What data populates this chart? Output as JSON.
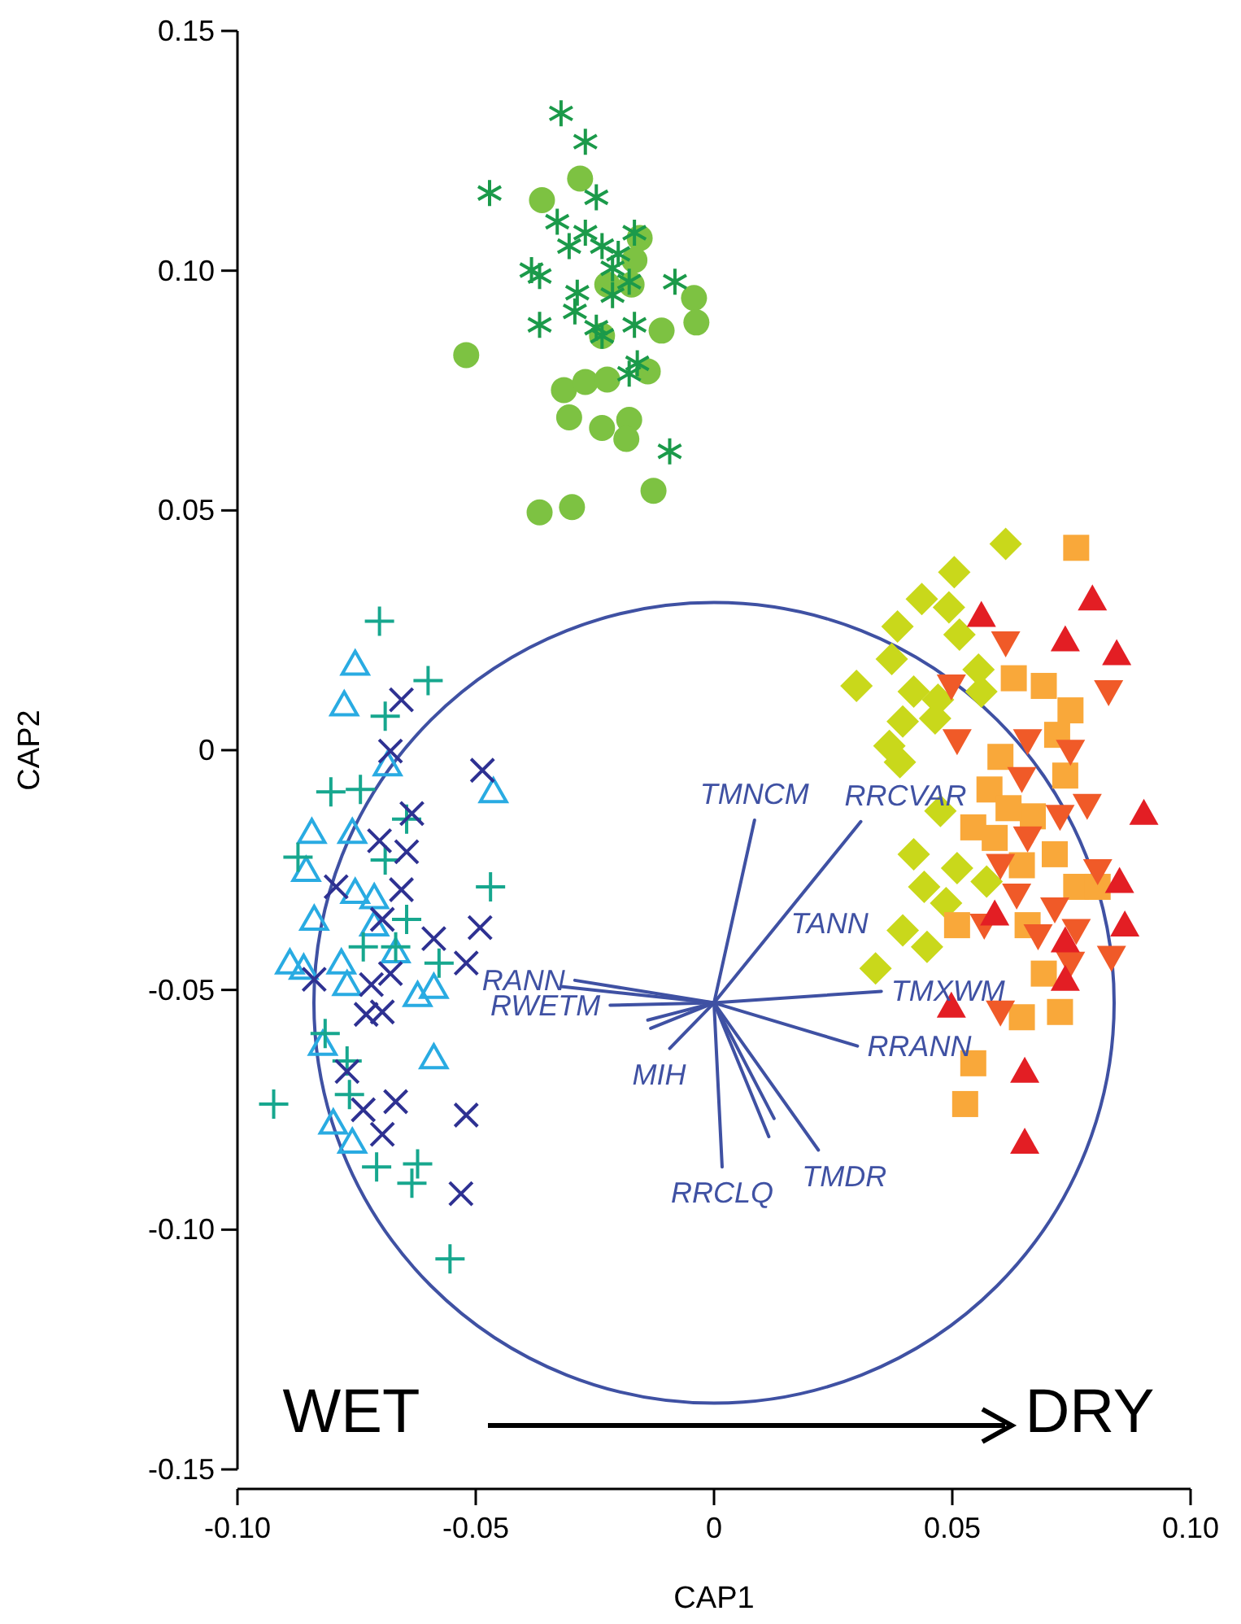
{
  "chart_data": {
    "type": "scatter",
    "xlabel": "CAP1",
    "ylabel": "CAP2",
    "xlim": [
      -0.1,
      0.1
    ],
    "ylim": [
      -0.15,
      0.15
    ],
    "xticks": [
      {
        "value": -0.1,
        "label": "-0.10"
      },
      {
        "value": -0.05,
        "label": "-0.05"
      },
      0,
      {
        "value": 0.05,
        "label": "0.05"
      },
      {
        "value": 0.1,
        "label": "0.10"
      }
    ],
    "yticks": [
      {
        "value": -0.15,
        "label": "-0.15"
      },
      {
        "value": -0.1,
        "label": "-0.10"
      },
      {
        "value": -0.05,
        "label": "-0.05"
      },
      0,
      {
        "value": 0.05,
        "label": "0.05"
      },
      {
        "value": 0.1,
        "label": "0.10"
      },
      {
        "value": 0.15,
        "label": "0.15"
      }
    ],
    "series": [
      {
        "type": "line",
        "color": "#3f51a3",
        "x": [
          0,
          0.0085
        ],
        "values": [
          -0.0527,
          -0.0146
        ]
      },
      {
        "type": "line",
        "color": "#3f51a3",
        "x": [
          0,
          0.0308
        ],
        "values": [
          -0.0527,
          -0.0149
        ]
      },
      {
        "type": "line",
        "color": "#3f51a3",
        "x": [
          0,
          0.0351
        ],
        "values": [
          -0.0527,
          -0.0503
        ]
      },
      {
        "type": "line",
        "color": "#3f51a3",
        "x": [
          0,
          0.0301
        ],
        "values": [
          -0.0527,
          -0.0617
        ]
      },
      {
        "type": "line",
        "color": "#3f51a3",
        "x": [
          0,
          0.0219
        ],
        "values": [
          -0.0527,
          -0.0834
        ]
      },
      {
        "type": "line",
        "color": "#3f51a3",
        "x": [
          0,
          0.0115
        ],
        "values": [
          -0.0527,
          -0.0806
        ]
      },
      {
        "type": "line",
        "color": "#3f51a3",
        "x": [
          0,
          0.0126
        ],
        "values": [
          -0.0527,
          -0.0768
        ]
      },
      {
        "type": "line",
        "color": "#3f51a3",
        "x": [
          0,
          0.0017
        ],
        "values": [
          -0.0527,
          -0.0869
        ]
      },
      {
        "type": "line",
        "color": "#3f51a3",
        "x": [
          0,
          -0.0093
        ],
        "values": [
          -0.0527,
          -0.0622
        ]
      },
      {
        "type": "line",
        "color": "#3f51a3",
        "x": [
          0,
          -0.0133
        ],
        "values": [
          -0.0527,
          -0.058
        ]
      },
      {
        "type": "line",
        "color": "#3f51a3",
        "x": [
          0,
          -0.0139
        ],
        "values": [
          -0.0527,
          -0.0563
        ]
      },
      {
        "type": "line",
        "color": "#3f51a3",
        "x": [
          0,
          -0.0218
        ],
        "values": [
          -0.0527,
          -0.0532
        ]
      },
      {
        "type": "line",
        "color": "#3f51a3",
        "x": [
          0,
          -0.0292
        ],
        "values": [
          -0.0527,
          -0.048
        ]
      },
      {
        "type": "line",
        "color": "#3f51a3",
        "x": [
          0,
          -0.0321
        ],
        "values": [
          -0.0527,
          -0.0493
        ]
      },
      {
        "marker": "circle",
        "color": "#7dc242",
        "x": [
          -0.0281,
          -0.0361,
          -0.0156,
          -0.0167,
          -0.0173,
          -0.0042,
          -0.0037,
          -0.011,
          -0.0235,
          -0.052,
          -0.0139,
          -0.0315,
          -0.027,
          -0.0224,
          -0.0304,
          -0.0235,
          -0.0178,
          -0.0184,
          -0.0127,
          -0.0366,
          -0.0298,
          -0.0224
        ],
        "values": [
          0.1192,
          0.1147,
          0.1068,
          0.1022,
          0.0971,
          0.0943,
          0.0892,
          0.0875,
          0.0864,
          0.0824,
          0.079,
          0.0751,
          0.0768,
          0.0773,
          0.0694,
          0.0672,
          0.0689,
          0.0649,
          0.0541,
          0.0496,
          0.0507,
          0.0971
        ]
      },
      {
        "marker": "cross",
        "color": "#1b9a4a",
        "x": [
          -0.0321,
          -0.027,
          -0.0471,
          -0.0247,
          -0.0329,
          -0.027,
          -0.0167,
          -0.0304,
          -0.0235,
          -0.0201,
          -0.0383,
          -0.0366,
          -0.0213,
          -0.0178,
          -0.0082,
          -0.0287,
          -0.0213,
          -0.0366,
          -0.0292,
          -0.0247,
          -0.0167,
          -0.0235,
          -0.0161,
          -0.0178,
          -0.0093
        ],
        "values": [
          0.1328,
          0.1269,
          0.1162,
          0.1153,
          0.1102,
          0.1079,
          0.1079,
          0.1051,
          0.1051,
          0.1035,
          0.1001,
          0.0989,
          0.1005,
          0.0977,
          0.0977,
          0.0954,
          0.0949,
          0.0887,
          0.0915,
          0.0881,
          0.0887,
          0.0864,
          0.0807,
          0.0785,
          0.0623
        ]
      },
      {
        "marker": "triangle-open",
        "color": "#29abe2",
        "x": [
          -0.0753,
          -0.0776,
          -0.0685,
          -0.0463,
          -0.0844,
          -0.0759,
          -0.0856,
          -0.0753,
          -0.0839,
          -0.0713,
          -0.089,
          -0.0782,
          -0.0668,
          -0.077,
          -0.0588,
          -0.0622,
          -0.0821,
          -0.0588,
          -0.0799,
          -0.0759,
          -0.0713,
          -0.0861
        ],
        "values": [
          0.0179,
          0.0094,
          -0.0031,
          -0.0087,
          -0.0172,
          -0.0172,
          -0.0251,
          -0.0297,
          -0.0353,
          -0.0365,
          -0.0444,
          -0.0444,
          -0.0421,
          -0.0489,
          -0.0495,
          -0.0512,
          -0.0614,
          -0.0642,
          -0.0778,
          -0.0818,
          -0.0308,
          -0.0455
        ]
      },
      {
        "marker": "plus",
        "color": "#17a78e",
        "x": [
          -0.0702,
          -0.06,
          -0.069,
          -0.0804,
          -0.0742,
          -0.0645,
          -0.0873,
          -0.069,
          -0.0469,
          -0.0645,
          -0.0736,
          -0.0577,
          -0.0816,
          -0.077,
          -0.0924,
          -0.0708,
          -0.0622,
          -0.0634,
          -0.0554,
          -0.0668,
          -0.0765
        ],
        "values": [
          0.0269,
          0.0145,
          0.0071,
          -0.0087,
          -0.0082,
          -0.0144,
          -0.0223,
          -0.0229,
          -0.0285,
          -0.0353,
          -0.041,
          -0.0444,
          -0.0591,
          -0.0648,
          -0.0738,
          -0.0869,
          -0.0863,
          -0.0903,
          -0.1061,
          -0.041,
          -0.0718
        ]
      },
      {
        "marker": "x",
        "color": "#2e3192",
        "x": [
          -0.0656,
          -0.0679,
          -0.0486,
          -0.0634,
          -0.0702,
          -0.0645,
          -0.0656,
          -0.0696,
          -0.0588,
          -0.0491,
          -0.052,
          -0.0839,
          -0.0719,
          -0.0679,
          -0.073,
          -0.0696,
          -0.077,
          -0.0668,
          -0.0736,
          -0.052,
          -0.0696,
          -0.0531,
          -0.0793
        ],
        "values": [
          0.0105,
          -0.0002,
          -0.0042,
          -0.0132,
          -0.0189,
          -0.0212,
          -0.0291,
          -0.0353,
          -0.0393,
          -0.037,
          -0.0444,
          -0.0478,
          -0.0489,
          -0.0466,
          -0.0551,
          -0.0546,
          -0.067,
          -0.0733,
          -0.075,
          -0.0761,
          -0.0801,
          -0.0925,
          -0.0285
        ]
      },
      {
        "marker": "diamond",
        "color": "#c9d81b",
        "x": [
          0.0612,
          0.0504,
          0.0436,
          0.0493,
          0.0385,
          0.0515,
          0.0299,
          0.0373,
          0.0555,
          0.0419,
          0.047,
          0.0396,
          0.0368,
          0.039,
          0.0475,
          0.0419,
          0.051,
          0.0441,
          0.0572,
          0.0487,
          0.0396,
          0.0447,
          0.0339,
          0.0464,
          0.0561
        ],
        "values": [
          0.043,
          0.0371,
          0.0315,
          0.0298,
          0.0258,
          0.0241,
          0.0134,
          0.019,
          0.0168,
          0.0122,
          0.0105,
          0.006,
          0.0009,
          -0.0025,
          -0.0127,
          -0.0217,
          -0.0246,
          -0.0285,
          -0.0274,
          -0.0319,
          -0.0376,
          -0.041,
          -0.0455,
          0.0066,
          0.0122
        ]
      },
      {
        "marker": "square",
        "color": "#f9a83a",
        "x": [
          0.076,
          0.0629,
          0.0692,
          0.0748,
          0.072,
          0.0601,
          0.0737,
          0.0578,
          0.0669,
          0.0544,
          0.0589,
          0.0646,
          0.0715,
          0.076,
          0.0658,
          0.0692,
          0.0646,
          0.0726,
          0.0544,
          0.0527,
          0.051,
          0.0805,
          0.0618
        ],
        "values": [
          0.0422,
          0.015,
          0.0134,
          0.0083,
          0.0032,
          -0.0014,
          -0.0053,
          -0.0082,
          -0.0138,
          -0.0161,
          -0.0183,
          -0.024,
          -0.0217,
          -0.0285,
          -0.0365,
          -0.0466,
          -0.0557,
          -0.0546,
          -0.0653,
          -0.0738,
          -0.0365,
          -0.0285,
          -0.0121
        ]
      },
      {
        "marker": "triangle-down",
        "color": "#f05a28",
        "x": [
          0.0612,
          0.0498,
          0.0828,
          0.051,
          0.0658,
          0.0748,
          0.0646,
          0.0783,
          0.0658,
          0.0601,
          0.0726,
          0.0805,
          0.0635,
          0.0567,
          0.0715,
          0.076,
          0.0834,
          0.0601,
          0.0748,
          0.068
        ],
        "values": [
          0.0224,
          0.0134,
          0.0122,
          0.002,
          0.002,
          -0.0002,
          -0.0059,
          -0.0115,
          -0.0183,
          -0.024,
          -0.0138,
          -0.0251,
          -0.0302,
          -0.0365,
          -0.0331,
          -0.0376,
          -0.0432,
          -0.0546,
          -0.0444,
          -0.0387
        ]
      },
      {
        "marker": "triangle",
        "color": "#e31e24",
        "x": [
          0.0794,
          0.0561,
          0.0737,
          0.0845,
          0.0902,
          0.0851,
          0.0862,
          0.0589,
          0.0737,
          0.0498,
          0.0652,
          0.0652,
          0.0737
        ],
        "values": [
          0.0315,
          0.0281,
          0.023,
          0.0201,
          -0.0132,
          -0.0274,
          -0.0365,
          -0.0342,
          -0.0398,
          -0.0534,
          -0.067,
          -0.0818,
          -0.0478
        ]
      }
    ],
    "annotations": [
      {
        "text": "TMNCM",
        "x": 0.0085,
        "y": -0.0146
      },
      {
        "text": "RRCVAR",
        "x": 0.0308,
        "y": -0.0149
      },
      {
        "text": "TANN",
        "x": 0.0134,
        "y": -0.0362
      },
      {
        "text": "TMXWM",
        "x": 0.0351,
        "y": -0.0503
      },
      {
        "text": "RRANN",
        "x": 0.0301,
        "y": -0.0617
      },
      {
        "text": "TMDR",
        "x": 0.0219,
        "y": -0.0834
      },
      {
        "text": "RRCLQ",
        "x": 0.0017,
        "y": -0.0869
      },
      {
        "text": "MIH",
        "x": -0.0093,
        "y": -0.0622
      },
      {
        "text": "RWETM",
        "x": -0.0218,
        "y": -0.0532
      },
      {
        "text": "RANN",
        "x": -0.0292,
        "y": -0.048
      },
      "WET",
      "DRY"
    ]
  }
}
